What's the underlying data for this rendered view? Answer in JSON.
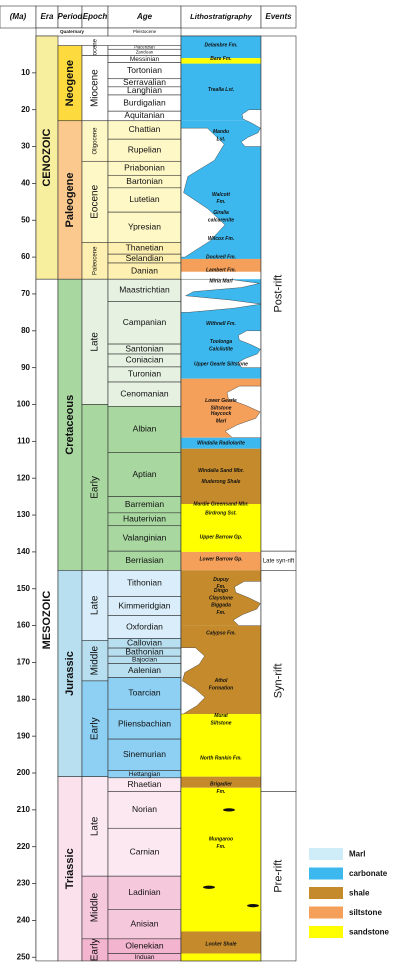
{
  "headers": {
    "ma": "(Ma)",
    "era": "Era",
    "period": "Period",
    "epoch": "Epoch",
    "age": "Age",
    "litho": "Lithostratigraphy",
    "events": "Events"
  },
  "quaternary_label": "Quaternary",
  "pleistocene_label": "Pleistocene",
  "ticks": [
    10,
    20,
    30,
    40,
    50,
    60,
    70,
    80,
    90,
    100,
    110,
    120,
    130,
    140,
    150,
    160,
    170,
    180,
    190,
    200,
    210,
    220,
    230,
    240,
    250
  ],
  "eras": [
    {
      "name": "CENOZOIC",
      "start": 0,
      "end": 66,
      "color": "#f7ee9e"
    },
    {
      "name": "MESOZOIC",
      "start": 66,
      "end": 251,
      "color": "#ffffff"
    }
  ],
  "periods": [
    {
      "name": "Neogene",
      "start": 2.6,
      "end": 23,
      "color": "#fddb3f"
    },
    {
      "name": "Paleogene",
      "start": 23,
      "end": 66,
      "color": "#fbc98e"
    },
    {
      "name": "Cretaceous",
      "start": 66,
      "end": 145,
      "color": "#a8d8a0"
    },
    {
      "name": "Jurassic",
      "start": 145,
      "end": 201,
      "color": "#b8dff0"
    },
    {
      "name": "Triassic",
      "start": 201,
      "end": 251,
      "color": "#fbe1ec"
    }
  ],
  "epochs": [
    {
      "name": "Pliocene",
      "start": 2.6,
      "end": 5.3,
      "color": "#ffffff",
      "small": true
    },
    {
      "name": "Miocene",
      "start": 5.3,
      "end": 23,
      "color": "#ffffff"
    },
    {
      "name": "Oligocene",
      "start": 23,
      "end": 34,
      "color": "#fef7c6",
      "small": true
    },
    {
      "name": "Eocene",
      "start": 34,
      "end": 56,
      "color": "#fef7c6"
    },
    {
      "name": "Paleocene",
      "start": 56,
      "end": 66,
      "color": "#fef0b0",
      "small": true
    },
    {
      "name": "Late",
      "start": 66,
      "end": 100,
      "color": "#e6f1e2"
    },
    {
      "name": "Early",
      "start": 100,
      "end": 145,
      "color": "#a8d8a0"
    },
    {
      "name": "Late",
      "start": 145,
      "end": 164,
      "color": "#d9eefa"
    },
    {
      "name": "Middle",
      "start": 164,
      "end": 175,
      "color": "#b8dff0"
    },
    {
      "name": "Early",
      "start": 175,
      "end": 201,
      "color": "#8ed0f3"
    },
    {
      "name": "Late",
      "start": 201,
      "end": 228,
      "color": "#fbe8f0"
    },
    {
      "name": "Middle",
      "start": 228,
      "end": 245,
      "color": "#f6c8dc"
    },
    {
      "name": "Early",
      "start": 245,
      "end": 251,
      "color": "#f3b4cf"
    }
  ],
  "ages": [
    {
      "name": "Piacenzian",
      "start": 2.6,
      "end": 3.6,
      "color": "#ffffff",
      "small": true
    },
    {
      "name": "Zanclean",
      "start": 3.6,
      "end": 5.3,
      "color": "#ffffff",
      "small": true
    },
    {
      "name": "Messinian",
      "start": 5.3,
      "end": 7.2,
      "color": "#ffffff"
    },
    {
      "name": "Tortonian",
      "start": 7.2,
      "end": 11.6,
      "color": "#ffffff"
    },
    {
      "name": "Serravalian",
      "start": 11.6,
      "end": 13.8,
      "color": "#ffffff"
    },
    {
      "name": "Langhian",
      "start": 13.8,
      "end": 16,
      "color": "#ffffff"
    },
    {
      "name": "Burdigalian",
      "start": 16,
      "end": 20.4,
      "color": "#ffffff"
    },
    {
      "name": "Aquitanian",
      "start": 20.4,
      "end": 23,
      "color": "#ffffff"
    },
    {
      "name": "Chattian",
      "start": 23,
      "end": 28,
      "color": "#fef7c6"
    },
    {
      "name": "Rupelian",
      "start": 28,
      "end": 34,
      "color": "#fef7c6"
    },
    {
      "name": "Priabonian",
      "start": 34,
      "end": 37.8,
      "color": "#fef7c6"
    },
    {
      "name": "Bartonian",
      "start": 37.8,
      "end": 41.2,
      "color": "#fef7c6"
    },
    {
      "name": "Lutetian",
      "start": 41.2,
      "end": 47.8,
      "color": "#fef7c6"
    },
    {
      "name": "Ypresian",
      "start": 47.8,
      "end": 56,
      "color": "#fef7c6"
    },
    {
      "name": "Thanetian",
      "start": 56,
      "end": 59.2,
      "color": "#fef0b0"
    },
    {
      "name": "Selandian",
      "start": 59.2,
      "end": 61.6,
      "color": "#fef0b0"
    },
    {
      "name": "Danian",
      "start": 61.6,
      "end": 66,
      "color": "#fef0b0"
    },
    {
      "name": "Maastrichtian",
      "start": 66,
      "end": 72.1,
      "color": "#e6f1e2"
    },
    {
      "name": "Campanian",
      "start": 72.1,
      "end": 83.6,
      "color": "#e6f1e2"
    },
    {
      "name": "Santonian",
      "start": 83.6,
      "end": 86.3,
      "color": "#e6f1e2"
    },
    {
      "name": "Coniacian",
      "start": 86.3,
      "end": 89.8,
      "color": "#e6f1e2"
    },
    {
      "name": "Turonian",
      "start": 89.8,
      "end": 93.9,
      "color": "#e6f1e2"
    },
    {
      "name": "Cenomanian",
      "start": 93.9,
      "end": 100.5,
      "color": "#e6f1e2"
    },
    {
      "name": "Albian",
      "start": 100.5,
      "end": 113,
      "color": "#a8d8a0"
    },
    {
      "name": "Aptian",
      "start": 113,
      "end": 125,
      "color": "#a8d8a0"
    },
    {
      "name": "Barremian",
      "start": 125,
      "end": 129.4,
      "color": "#a8d8a0"
    },
    {
      "name": "Hauterivian",
      "start": 129.4,
      "end": 132.9,
      "color": "#a8d8a0"
    },
    {
      "name": "Valanginian",
      "start": 132.9,
      "end": 139.8,
      "color": "#a8d8a0"
    },
    {
      "name": "Berriasian",
      "start": 139.8,
      "end": 145,
      "color": "#a8d8a0"
    },
    {
      "name": "Tithonian",
      "start": 145,
      "end": 152.1,
      "color": "#d9eefa"
    },
    {
      "name": "Kimmeridgian",
      "start": 152.1,
      "end": 157.3,
      "color": "#d9eefa"
    },
    {
      "name": "Oxfordian",
      "start": 157.3,
      "end": 163.5,
      "color": "#d9eefa"
    },
    {
      "name": "Callovian",
      "start": 163.5,
      "end": 166.1,
      "color": "#b8dff0"
    },
    {
      "name": "Bathonian",
      "start": 166.1,
      "end": 168.3,
      "color": "#b8dff0"
    },
    {
      "name": "Bajocian",
      "start": 168.3,
      "end": 170.3,
      "color": "#b8dff0"
    },
    {
      "name": "Aalenian",
      "start": 170.3,
      "end": 174.1,
      "color": "#b8dff0"
    },
    {
      "name": "Toarcian",
      "start": 174.1,
      "end": 182.7,
      "color": "#8ed0f3"
    },
    {
      "name": "Pliensbachian",
      "start": 182.7,
      "end": 190.8,
      "color": "#8ed0f3"
    },
    {
      "name": "Sinemurian",
      "start": 190.8,
      "end": 199.3,
      "color": "#8ed0f3"
    },
    {
      "name": "Hettangian",
      "start": 199.3,
      "end": 201.3,
      "color": "#8ed0f3"
    },
    {
      "name": "Rhaetian",
      "start": 201.3,
      "end": 205,
      "color": "#fbe8f0"
    },
    {
      "name": "Norian",
      "start": 205,
      "end": 215,
      "color": "#fbe8f0"
    },
    {
      "name": "Carnian",
      "start": 215,
      "end": 228,
      "color": "#fbe8f0"
    },
    {
      "name": "Ladinian",
      "start": 228,
      "end": 237,
      "color": "#f6c8dc"
    },
    {
      "name": "Anisian",
      "start": 237,
      "end": 245,
      "color": "#f6c8dc"
    },
    {
      "name": "Olenekian",
      "start": 245,
      "end": 249,
      "color": "#f3b4cf"
    },
    {
      "name": "Induan",
      "start": 249,
      "end": 251,
      "color": "#f3b4cf"
    }
  ],
  "litho_blocks": [
    {
      "start": 0,
      "end": 6,
      "lith": "carbonate"
    },
    {
      "start": 6,
      "end": 7.5,
      "lith": "sandstone"
    },
    {
      "start": 7.5,
      "end": 23,
      "lith": "carbonate"
    },
    {
      "start": 23,
      "end": 60.5,
      "lith": "carbonate"
    },
    {
      "start": 60.5,
      "end": 61.6,
      "lith": "siltstone"
    },
    {
      "start": 61.6,
      "end": 64,
      "lith": "siltstone"
    },
    {
      "start": 64,
      "end": 66,
      "lith": "white"
    },
    {
      "start": 66,
      "end": 93,
      "lith": "carbonate"
    },
    {
      "start": 93,
      "end": 109,
      "lith": "siltstone"
    },
    {
      "start": 109,
      "end": 112,
      "lith": "carbonate"
    },
    {
      "start": 112,
      "end": 127,
      "lith": "shale"
    },
    {
      "start": 127,
      "end": 140,
      "lith": "sandstone"
    },
    {
      "start": 140,
      "end": 145,
      "lith": "siltstone"
    },
    {
      "start": 145,
      "end": 160,
      "lith": "shale"
    },
    {
      "start": 160,
      "end": 184,
      "lith": "shale"
    },
    {
      "start": 184,
      "end": 201,
      "lith": "sandstone"
    },
    {
      "start": 201,
      "end": 204,
      "lith": "shale"
    },
    {
      "start": 204,
      "end": 243,
      "lith": "sandstone"
    },
    {
      "start": 243,
      "end": 249,
      "lith": "shale"
    },
    {
      "start": 249,
      "end": 251,
      "lith": "sandstone"
    }
  ],
  "litho_white_patches": [
    {
      "start": 25,
      "end": 60,
      "side": "left",
      "w": 0.55
    },
    {
      "start": 66,
      "end": 75,
      "side": "left",
      "w": 1.0
    },
    {
      "start": 80,
      "end": 90,
      "side": "right",
      "w": 0.3
    },
    {
      "start": 95,
      "end": 109,
      "side": "right",
      "w": 0.45
    },
    {
      "start": 148,
      "end": 160,
      "side": "right",
      "w": 0.35
    },
    {
      "start": 166,
      "end": 184,
      "side": "left",
      "w": 0.3
    },
    {
      "start": 20,
      "end": 30,
      "side": "right",
      "w": 0.25
    }
  ],
  "litho_labels": [
    {
      "text": "Delambre Fm.",
      "ma": 2.5
    },
    {
      "text": "Bare Fm.",
      "ma": 6.2
    },
    {
      "text": "Trealla Lst.",
      "ma": 14.5
    },
    {
      "text": "Mandu",
      "ma": 26
    },
    {
      "text": "Lst.",
      "ma": 28
    },
    {
      "text": "Walcott",
      "ma": 43
    },
    {
      "text": "Fm.",
      "ma": 45
    },
    {
      "text": "Giralia",
      "ma": 48
    },
    {
      "text": "calcarenite",
      "ma": 50
    },
    {
      "text": "Wilcox Fm.",
      "ma": 55
    },
    {
      "text": "Dockrell Fm.",
      "ma": 60
    },
    {
      "text": "Lambert Fm.",
      "ma": 63.5
    },
    {
      "text": "Miria Marl",
      "ma": 66.5
    },
    {
      "text": "Withnell Fm.",
      "ma": 78
    },
    {
      "text": "Toolonga",
      "ma": 83
    },
    {
      "text": "Calcilutite",
      "ma": 85
    },
    {
      "text": "Upper Gearle Siltstone",
      "ma": 89
    },
    {
      "text": "Lower Gearle",
      "ma": 99
    },
    {
      "text": "Siltstone",
      "ma": 101
    },
    {
      "text": "Haycock",
      "ma": 102.5
    },
    {
      "text": "Marl",
      "ma": 104.5
    },
    {
      "text": "Windalia Radiolarite",
      "ma": 110.5
    },
    {
      "text": "Windalia Sand Mbr.",
      "ma": 118
    },
    {
      "text": "Muderong Shale",
      "ma": 121
    },
    {
      "text": "Mardie Greensand Mbr.",
      "ma": 127
    },
    {
      "text": "Birdrong Sst.",
      "ma": 129.5
    },
    {
      "text": "Upper Barrow Gp.",
      "ma": 136
    },
    {
      "text": "Lower Barrow Gp.",
      "ma": 142
    },
    {
      "text": "Dupuy",
      "ma": 147.5
    },
    {
      "text": "Fm.",
      "ma": 149.5
    },
    {
      "text": "Dingo",
      "ma": 150.5
    },
    {
      "text": "Claystone",
      "ma": 152.5
    },
    {
      "text": "Biggada",
      "ma": 154.5
    },
    {
      "text": "Fm.",
      "ma": 156.5
    },
    {
      "text": "Calypso Fm.",
      "ma": 162
    },
    {
      "text": "Athol",
      "ma": 175
    },
    {
      "text": "Formation",
      "ma": 177
    },
    {
      "text": "Murat",
      "ma": 184.5
    },
    {
      "text": "Siltstone",
      "ma": 186.5
    },
    {
      "text": "North Rankin Fm.",
      "ma": 196
    },
    {
      "text": "Brigadier",
      "ma": 203
    },
    {
      "text": "Fm.",
      "ma": 205
    },
    {
      "text": "Mungaroo",
      "ma": 218
    },
    {
      "text": "Fm.",
      "ma": 220
    },
    {
      "text": "Locker Shale",
      "ma": 246.5
    }
  ],
  "events": [
    {
      "label": "Post-rift",
      "start": 0,
      "end": 139.8
    },
    {
      "label": "Late syn-rift",
      "start": 139.8,
      "end": 145
    },
    {
      "label": "Syn-rift",
      "start": 145,
      "end": 205
    },
    {
      "label": "Pre-rift",
      "start": 205,
      "end": 251
    }
  ],
  "legend": [
    {
      "label": "Marl",
      "color": "#cfedf9"
    },
    {
      "label": "carbonate",
      "color": "#3cb8ee"
    },
    {
      "label": "shale",
      "color": "#c48a2c"
    },
    {
      "label": "siltstone",
      "color": "#f5a05a"
    },
    {
      "label": "sandstone",
      "color": "#ffff00"
    }
  ],
  "lith_colors": {
    "carbonate": "#3cb8ee",
    "sandstone": "#ffff00",
    "siltstone": "#f5a05a",
    "shale": "#c48a2c",
    "marl": "#cfedf9",
    "white": "#ffffff"
  }
}
